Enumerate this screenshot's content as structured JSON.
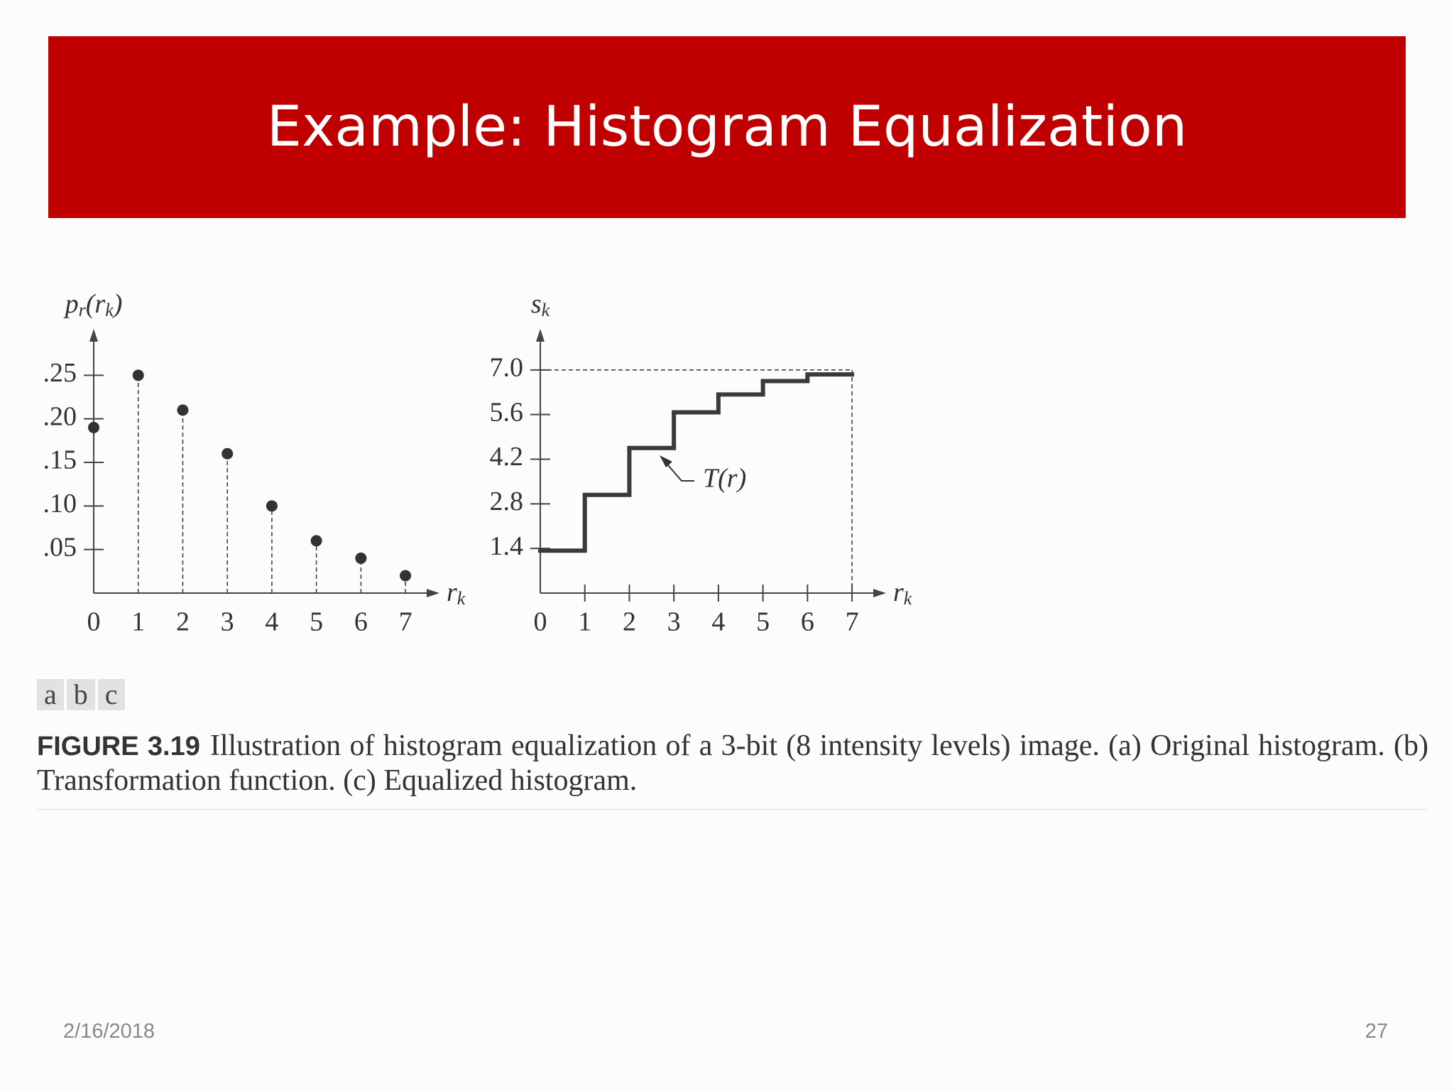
{
  "slide": {
    "title": "Example: Histogram Equalization",
    "date": "2/16/2018",
    "page": "27"
  },
  "chart_data": [
    {
      "type": "stem",
      "ylabel": [
        "p",
        "r",
        "(r",
        "k",
        ")"
      ],
      "xlabel": [
        "r",
        "k"
      ],
      "x": [
        0,
        1,
        2,
        3,
        4,
        5,
        6,
        7
      ],
      "values": [
        0.19,
        0.25,
        0.21,
        0.16,
        0.1,
        0.06,
        0.04,
        0.02
      ],
      "color": "#333333",
      "xlim": [
        0,
        7.7
      ],
      "ylim": [
        0,
        0.3
      ],
      "xticks": [
        0,
        1,
        2,
        3,
        4,
        5,
        6,
        7
      ],
      "yticks": [
        {
          "value": 0.05,
          "label": ".05"
        },
        {
          "value": 0.1,
          "label": ".10"
        },
        {
          "value": 0.15,
          "label": ".15"
        },
        {
          "value": 0.2,
          "label": ".20"
        },
        {
          "value": 0.25,
          "label": ".25"
        }
      ]
    },
    {
      "type": "step",
      "ylabel": [
        "s",
        "k"
      ],
      "xlabel": [
        "r",
        "k"
      ],
      "annotation": "T(r)",
      "x": [
        0,
        1,
        2,
        3,
        4,
        5,
        6
      ],
      "values": [
        1.33,
        3.08,
        4.55,
        5.67,
        6.23,
        6.65,
        6.86
      ],
      "color": "#3a3a3a",
      "xlim": [
        0,
        7.7
      ],
      "ylim": [
        0,
        8.2
      ],
      "xticks": [
        0,
        1,
        2,
        3,
        4,
        5,
        6,
        7
      ],
      "yticks": [
        1.4,
        2.8,
        4.2,
        5.6,
        {
          "value": 7,
          "label": "7.0"
        }
      ]
    }
  ],
  "figure": {
    "panels": [
      "a",
      "b",
      "c"
    ],
    "label": "FIGURE 3.19",
    "caption": "Illustration of histogram equalization of a 3-bit (8 intensity levels) image. (a) Original histogram. (b) Transformation function. (c) Equalized histogram."
  }
}
